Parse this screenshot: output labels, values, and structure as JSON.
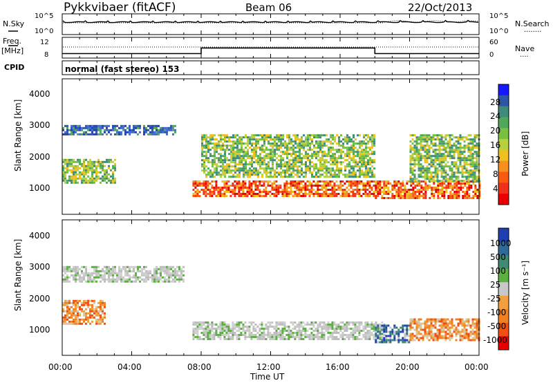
{
  "header": {
    "station": "Pykkvibaer (fitACF)",
    "beam": "Beam 06",
    "date": "22/Oct/2013"
  },
  "noise_panel": {
    "left_label": "N.Sky",
    "left_ticks": [
      "10^5",
      "10^0"
    ],
    "right_ticks": [
      "10^5",
      "10^0"
    ],
    "right_label": "N.Search",
    "right_legend": "........"
  },
  "freq_panel": {
    "left_label_1": "Freq.",
    "left_label_2": "[MHz]",
    "left_ticks": [
      "12",
      "8"
    ],
    "right_ticks": [
      "60",
      "0"
    ],
    "right_label": "Nave",
    "right_legend": "....",
    "freq_levels": [
      {
        "from": 0,
        "to": 8,
        "mhz": 9.0
      },
      {
        "from": 8,
        "to": 18,
        "mhz": 10.8
      },
      {
        "from": 18,
        "to": 24,
        "mhz": 9.0
      }
    ],
    "nave_reference": 12.0
  },
  "cpid": {
    "label": "CPID",
    "program": "normal (fast stereo) 153"
  },
  "x_axis": {
    "label": "Time UT",
    "ticks": [
      "00:00",
      "04:00",
      "08:00",
      "12:00",
      "16:00",
      "20:00",
      "00:00"
    ],
    "range_hours": [
      0,
      24
    ]
  },
  "power_panel": {
    "ylabel": "Slant Range [km]",
    "yticks": [
      "4000",
      "3000",
      "2000",
      "1000"
    ],
    "colorbar_label": "Power [dB]",
    "colorbar_ticks": [
      "28",
      "24",
      "20",
      "16",
      "12",
      "8",
      "4"
    ],
    "colorbar_colors": [
      "#1717ff",
      "#2f55a8",
      "#3f8a7a",
      "#4fa85a",
      "#7ac040",
      "#b8d040",
      "#f0c020",
      "#f89020",
      "#f85a10",
      "#f03018",
      "#e80000"
    ]
  },
  "velocity_panel": {
    "ylabel": "Slant Range [km]",
    "yticks": [
      "4000",
      "3000",
      "2000",
      "1000"
    ],
    "colorbar_label": "Velocity [m s⁻¹]",
    "colorbar_ticks": [
      "1000",
      "500",
      "100",
      "25",
      "-25",
      "-100",
      "-500",
      "-1000"
    ],
    "colorbar_colors": [
      "#1f3fb0",
      "#2f6a98",
      "#3f8a70",
      "#5ab040",
      "#c8c8c8",
      "#f0a040",
      "#f08020",
      "#f05010",
      "#e80000"
    ]
  },
  "chart_data": {
    "type": "heatmap",
    "x_range": [
      0,
      24
    ],
    "y_range": [
      200,
      4600
    ],
    "x_unit": "hours UT",
    "y_unit": "km",
    "power_regions": [
      {
        "t0": 0.0,
        "t1": 6.5,
        "r0": 2800,
        "r1": 3100,
        "level": "blue"
      },
      {
        "t0": 0.0,
        "t1": 3.0,
        "r0": 1200,
        "r1": 2000,
        "level": "green"
      },
      {
        "t0": 7.5,
        "t1": 18.2,
        "r0": 800,
        "r1": 1300,
        "level": "red"
      },
      {
        "t0": 8.0,
        "t1": 18.0,
        "r0": 1400,
        "r1": 2800,
        "level": "green"
      },
      {
        "t0": 18.0,
        "t1": 24.0,
        "r0": 700,
        "r1": 1300,
        "level": "red"
      },
      {
        "t0": 20.0,
        "t1": 24.0,
        "r0": 1300,
        "r1": 2800,
        "level": "green"
      }
    ],
    "velocity_regions": [
      {
        "t0": 0.0,
        "t1": 2.5,
        "r0": 1200,
        "r1": 2000,
        "level": "orange"
      },
      {
        "t0": 7.5,
        "t1": 18.5,
        "r0": 700,
        "r1": 1300,
        "level": "grey"
      },
      {
        "t0": 0.0,
        "t1": 7.0,
        "r0": 2600,
        "r1": 3100,
        "level": "grey"
      },
      {
        "t0": 18.0,
        "t1": 20.0,
        "r0": 600,
        "r1": 1200,
        "level": "blue"
      },
      {
        "t0": 20.0,
        "t1": 24.0,
        "r0": 700,
        "r1": 1400,
        "level": "orange"
      }
    ]
  }
}
